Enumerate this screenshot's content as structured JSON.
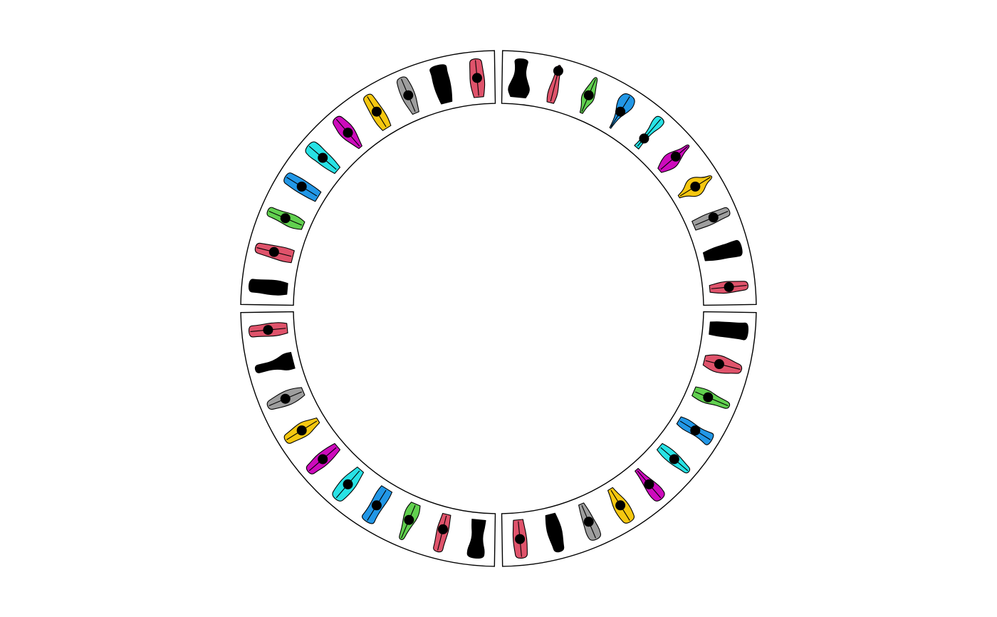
{
  "chart_data": {
    "type": "circular-violin",
    "title": "",
    "xlabel": "",
    "ylabel": "",
    "grid": false,
    "legend": "none",
    "palette": [
      "#000000",
      "#DF536B",
      "#61D04F",
      "#2297E6",
      "#28E2E5",
      "#CD0BBC",
      "#F5C710",
      "#9E9E9E"
    ],
    "sectors": [
      {
        "id": "sector-1",
        "start_deg": 0,
        "end_deg": 90,
        "violins": [
          {
            "color_index": 0,
            "shape": [
              0.55,
              0.8,
              0.55,
              0.35,
              0.35,
              0.45
            ],
            "mean": null
          },
          {
            "color_index": 1,
            "shape": [
              0.25,
              0.35,
              0.3,
              0.2,
              0.15,
              0.1
            ],
            "mean": 0.85
          },
          {
            "color_index": 2,
            "shape": [
              0.1,
              0.2,
              0.45,
              0.35,
              0.2,
              0.1
            ],
            "mean": 0.5
          },
          {
            "color_index": 3,
            "shape": [
              0.05,
              0.1,
              0.2,
              0.45,
              0.55,
              0.35
            ],
            "mean": 0.5
          },
          {
            "color_index": 4,
            "shape": [
              0.2,
              0.15,
              0.15,
              0.2,
              0.35,
              0.3
            ],
            "mean": 0.3
          },
          {
            "color_index": 5,
            "shape": [
              0.2,
              0.45,
              0.55,
              0.35,
              0.15,
              0.1
            ],
            "mean": 0.55
          },
          {
            "color_index": 6,
            "shape": [
              0.1,
              0.25,
              0.65,
              0.6,
              0.2,
              0.1
            ],
            "mean": 0.5
          },
          {
            "color_index": 7,
            "shape": [
              0.35,
              0.38,
              0.4,
              0.35,
              0.3,
              0.28
            ],
            "mean": 0.55
          },
          {
            "color_index": 0,
            "shape": [
              0.3,
              0.4,
              0.45,
              0.45,
              0.5,
              0.5
            ],
            "mean": null
          },
          {
            "color_index": 1,
            "shape": [
              0.25,
              0.35,
              0.4,
              0.35,
              0.3,
              0.25
            ],
            "mean": 0.5
          }
        ]
      },
      {
        "id": "sector-2",
        "start_deg": 90,
        "end_deg": 180,
        "violins": [
          {
            "color_index": 0,
            "shape": [
              0.45,
              0.5,
              0.5,
              0.5,
              0.5,
              0.55
            ],
            "mean": null
          },
          {
            "color_index": 1,
            "shape": [
              0.35,
              0.55,
              0.6,
              0.5,
              0.35,
              0.25
            ],
            "mean": 0.4
          },
          {
            "color_index": 2,
            "shape": [
              0.35,
              0.45,
              0.45,
              0.3,
              0.25,
              0.2
            ],
            "mean": 0.4
          },
          {
            "color_index": 3,
            "shape": [
              0.3,
              0.4,
              0.35,
              0.3,
              0.35,
              0.45
            ],
            "mean": 0.5
          },
          {
            "color_index": 4,
            "shape": [
              0.3,
              0.4,
              0.4,
              0.35,
              0.25,
              0.2
            ],
            "mean": 0.5
          },
          {
            "color_index": 5,
            "shape": [
              0.15,
              0.2,
              0.3,
              0.4,
              0.45,
              0.35
            ],
            "mean": 0.5
          },
          {
            "color_index": 6,
            "shape": [
              0.2,
              0.3,
              0.45,
              0.5,
              0.45,
              0.35
            ],
            "mean": 0.5
          },
          {
            "color_index": 7,
            "shape": [
              0.2,
              0.3,
              0.35,
              0.4,
              0.45,
              0.35
            ],
            "mean": 0.5
          },
          {
            "color_index": 0,
            "shape": [
              0.35,
              0.45,
              0.5,
              0.45,
              0.35,
              0.3
            ],
            "mean": null
          },
          {
            "color_index": 1,
            "shape": [
              0.35,
              0.4,
              0.45,
              0.45,
              0.4,
              0.35
            ],
            "mean": 0.5
          }
        ]
      },
      {
        "id": "sector-3",
        "start_deg": 180,
        "end_deg": 270,
        "violins": [
          {
            "color_index": 0,
            "shape": [
              0.5,
              0.45,
              0.35,
              0.4,
              0.55,
              0.5
            ],
            "mean": null
          },
          {
            "color_index": 1,
            "shape": [
              0.3,
              0.35,
              0.4,
              0.35,
              0.3,
              0.3
            ],
            "mean": 0.4
          },
          {
            "color_index": 2,
            "shape": [
              0.35,
              0.5,
              0.45,
              0.3,
              0.2,
              0.15
            ],
            "mean": 0.45
          },
          {
            "color_index": 3,
            "shape": [
              0.45,
              0.5,
              0.45,
              0.4,
              0.4,
              0.45
            ],
            "mean": 0.5
          },
          {
            "color_index": 4,
            "shape": [
              0.3,
              0.4,
              0.5,
              0.5,
              0.45,
              0.35
            ],
            "mean": 0.5
          },
          {
            "color_index": 5,
            "shape": [
              0.3,
              0.4,
              0.45,
              0.45,
              0.35,
              0.3
            ],
            "mean": 0.5
          },
          {
            "color_index": 6,
            "shape": [
              0.2,
              0.35,
              0.5,
              0.45,
              0.35,
              0.3
            ],
            "mean": 0.5
          },
          {
            "color_index": 7,
            "shape": [
              0.3,
              0.45,
              0.5,
              0.45,
              0.35,
              0.25
            ],
            "mean": 0.5
          },
          {
            "color_index": 0,
            "shape": [
              0.6,
              0.6,
              0.35,
              0.25,
              0.25,
              0.25
            ],
            "mean": null
          },
          {
            "color_index": 1,
            "shape": [
              0.35,
              0.45,
              0.45,
              0.4,
              0.35,
              0.35
            ],
            "mean": 0.5
          }
        ]
      },
      {
        "id": "sector-4",
        "start_deg": 270,
        "end_deg": 360,
        "violins": [
          {
            "color_index": 0,
            "shape": [
              0.4,
              0.5,
              0.5,
              0.45,
              0.4,
              0.4
            ],
            "mean": null
          },
          {
            "color_index": 1,
            "shape": [
              0.45,
              0.5,
              0.45,
              0.4,
              0.35,
              0.3
            ],
            "mean": 0.5
          },
          {
            "color_index": 2,
            "shape": [
              0.3,
              0.45,
              0.45,
              0.35,
              0.3,
              0.3
            ],
            "mean": 0.5
          },
          {
            "color_index": 3,
            "shape": [
              0.4,
              0.45,
              0.45,
              0.45,
              0.4,
              0.35
            ],
            "mean": 0.5
          },
          {
            "color_index": 4,
            "shape": [
              0.3,
              0.4,
              0.45,
              0.45,
              0.5,
              0.4
            ],
            "mean": 0.5
          },
          {
            "color_index": 5,
            "shape": [
              0.15,
              0.3,
              0.45,
              0.5,
              0.4,
              0.3
            ],
            "mean": 0.5
          },
          {
            "color_index": 6,
            "shape": [
              0.35,
              0.45,
              0.45,
              0.4,
              0.35,
              0.3
            ],
            "mean": 0.5
          },
          {
            "color_index": 7,
            "shape": [
              0.25,
              0.35,
              0.45,
              0.45,
              0.4,
              0.3
            ],
            "mean": 0.5
          },
          {
            "color_index": 0,
            "shape": [
              0.4,
              0.5,
              0.55,
              0.55,
              0.5,
              0.55
            ],
            "mean": null
          },
          {
            "color_index": 1,
            "shape": [
              0.35,
              0.45,
              0.5,
              0.45,
              0.4,
              0.35
            ],
            "mean": 0.5
          }
        ]
      }
    ]
  }
}
